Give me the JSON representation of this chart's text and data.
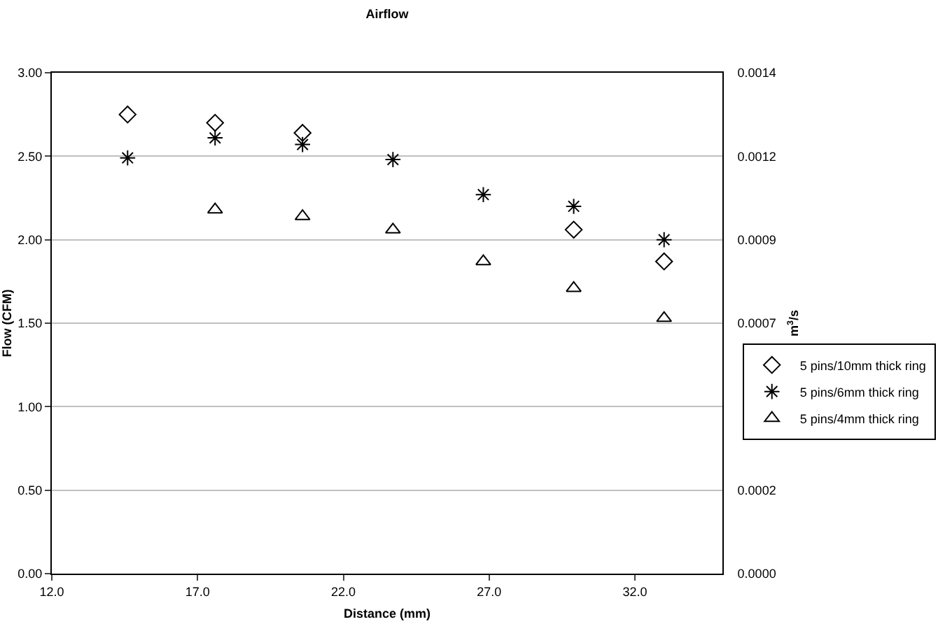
{
  "chart_data": {
    "type": "scatter",
    "title": "Airflow",
    "xlabel": "Distance (mm)",
    "ylabel": "Flow (CFM)",
    "y2label": "m$^{3}$/s",
    "x": [
      14.6,
      17.6,
      20.6,
      23.7,
      26.8,
      29.9,
      33.0
    ],
    "series": [
      {
        "name": "5 pins/10mm thick ring",
        "color": "#000000",
        "marker": "diamond",
        "values": [
          2.75,
          2.7,
          2.64,
          null,
          null,
          2.06,
          1.87
        ]
      },
      {
        "name": "5 pins/6mm thick ring",
        "color": "#000000",
        "marker": "cross",
        "values": [
          2.49,
          2.61,
          2.57,
          2.48,
          2.27,
          2.2,
          2.0
        ]
      },
      {
        "name": "5 pins/4mm thick ring",
        "color": "#000000",
        "marker": "triangle",
        "values": [
          null,
          2.18,
          2.14,
          2.06,
          1.87,
          1.71,
          1.53
        ]
      }
    ],
    "xlim": [
      12,
      35
    ],
    "xticks": [
      {
        "value": 12,
        "label": "12.0"
      },
      {
        "value": 17,
        "label": "17.0"
      },
      {
        "value": 22,
        "label": "22.0"
      },
      {
        "value": 27,
        "label": "27.0"
      },
      {
        "value": 32,
        "label": "32.0"
      }
    ],
    "ylim": [
      0,
      3
    ],
    "yticks": [
      {
        "value": 0,
        "label": "0.00"
      },
      {
        "value": 0.5,
        "label": "0.50"
      },
      {
        "value": 1,
        "label": "1.00"
      },
      {
        "value": 1.5,
        "label": "1.50"
      },
      {
        "value": 2,
        "label": "2.00"
      },
      {
        "value": 2.5,
        "label": "2.50"
      },
      {
        "value": 3,
        "label": "3.00"
      }
    ],
    "y2lim": [
      0,
      0.001416
    ],
    "y2ticks": [
      {
        "value": 0,
        "label": "0.0000"
      },
      {
        "value": 0.000236,
        "label": "0.0002"
      },
      {
        "value": 0.000708,
        "label": "0.0007"
      },
      {
        "value": 0.000944,
        "label": "0.0009"
      },
      {
        "value": 0.00118,
        "label": "0.0012"
      },
      {
        "value": 0.001416,
        "label": "0.0014"
      }
    ],
    "grid": "y",
    "legend": "right"
  }
}
